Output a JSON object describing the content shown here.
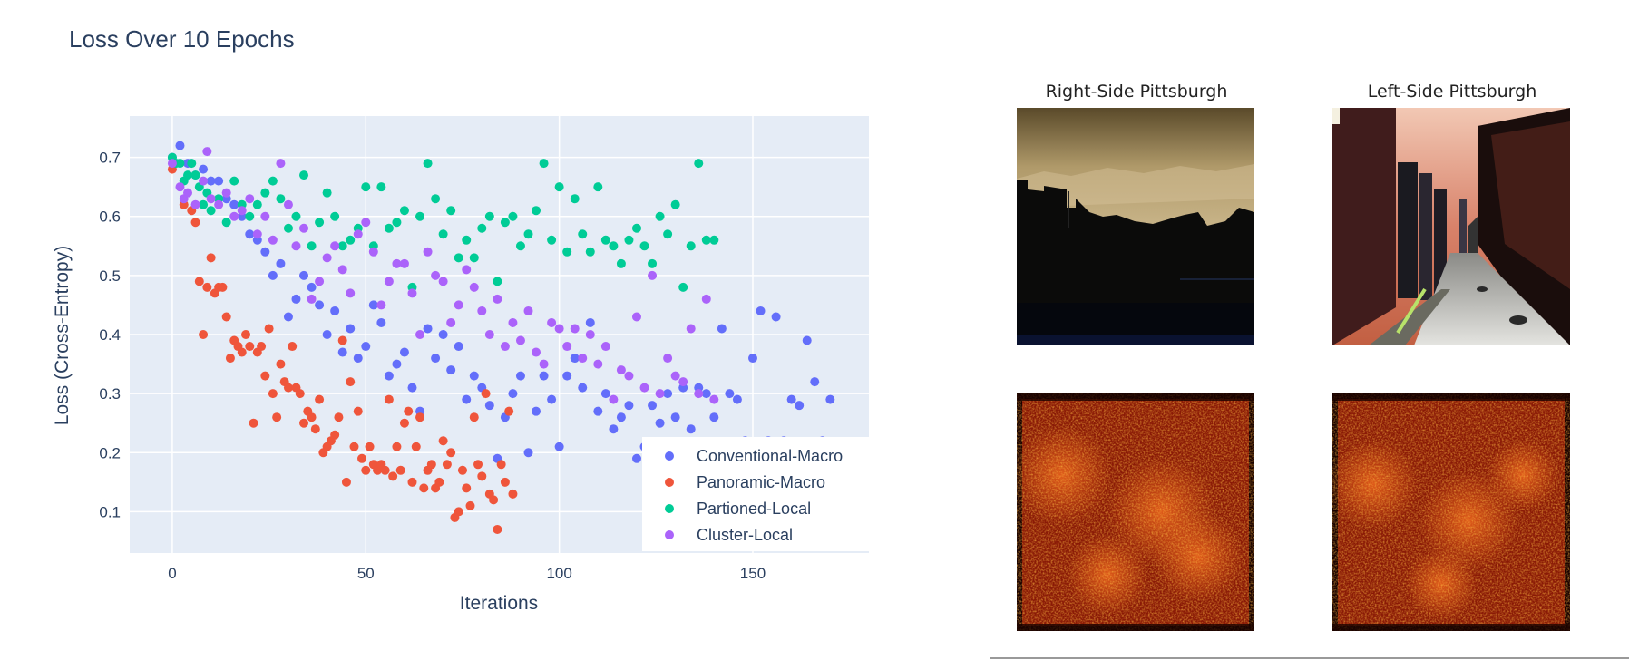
{
  "chart_data": {
    "type": "scatter",
    "title": "Loss Over 10 Epochs",
    "xlabel": "Iterations",
    "ylabel": "Loss (Cross-Entropy)",
    "xlim": [
      -11,
      180
    ],
    "ylim": [
      0.03,
      0.77
    ],
    "xticks": [
      0,
      50,
      100,
      150
    ],
    "yticks": [
      0.1,
      0.2,
      0.3,
      0.4,
      0.5,
      0.6,
      0.7
    ],
    "grid": true,
    "legend_position": "bottom-right",
    "series": [
      {
        "name": "Conventional-Macro",
        "color": "#636efa",
        "x": [
          0,
          2,
          4,
          6,
          8,
          10,
          12,
          14,
          16,
          18,
          20,
          22,
          24,
          26,
          28,
          30,
          32,
          34,
          36,
          38,
          40,
          42,
          44,
          46,
          48,
          50,
          52,
          54,
          56,
          58,
          60,
          62,
          64,
          66,
          68,
          70,
          72,
          74,
          76,
          78,
          80,
          82,
          84,
          86,
          88,
          90,
          92,
          94,
          96,
          98,
          100,
          102,
          104,
          106,
          108,
          110,
          112,
          114,
          116,
          118,
          120,
          122,
          124,
          126,
          128,
          130,
          132,
          134,
          136,
          138,
          140,
          142,
          144,
          146,
          148,
          150,
          152,
          154,
          156,
          158,
          160,
          162,
          164,
          166,
          168,
          170
        ],
        "y": [
          0.7,
          0.72,
          0.69,
          0.67,
          0.68,
          0.66,
          0.66,
          0.63,
          0.62,
          0.6,
          0.57,
          0.56,
          0.54,
          0.5,
          0.52,
          0.43,
          0.46,
          0.5,
          0.48,
          0.45,
          0.4,
          0.44,
          0.37,
          0.41,
          0.36,
          0.38,
          0.45,
          0.42,
          0.33,
          0.35,
          0.37,
          0.31,
          0.27,
          0.41,
          0.36,
          0.4,
          0.34,
          0.38,
          0.29,
          0.33,
          0.31,
          0.28,
          0.19,
          0.26,
          0.3,
          0.33,
          0.2,
          0.27,
          0.33,
          0.29,
          0.21,
          0.33,
          0.36,
          0.31,
          0.42,
          0.27,
          0.3,
          0.24,
          0.26,
          0.28,
          0.19,
          0.21,
          0.28,
          0.25,
          0.3,
          0.26,
          0.31,
          0.24,
          0.31,
          0.3,
          0.26,
          0.41,
          0.3,
          0.29,
          0.22,
          0.36,
          0.44,
          0.22,
          0.43,
          0.22,
          0.29,
          0.28,
          0.39,
          0.32,
          0.22,
          0.29
        ]
      },
      {
        "name": "Panoramic-Macro",
        "color": "#ef553b",
        "x": [
          0,
          3,
          5,
          6,
          7,
          8,
          9,
          10,
          11,
          12,
          13,
          14,
          15,
          16,
          17,
          18,
          19,
          20,
          21,
          22,
          23,
          24,
          25,
          26,
          27,
          28,
          29,
          30,
          31,
          32,
          33,
          34,
          35,
          36,
          37,
          38,
          39,
          40,
          41,
          42,
          43,
          44,
          45,
          46,
          47,
          48,
          49,
          50,
          51,
          52,
          53,
          54,
          55,
          56,
          57,
          58,
          59,
          60,
          61,
          62,
          63,
          64,
          65,
          66,
          67,
          68,
          69,
          70,
          71,
          72,
          73,
          74,
          75,
          76,
          77,
          78,
          79,
          80,
          81,
          82,
          83,
          84,
          85,
          86,
          87,
          88
        ],
        "y": [
          0.68,
          0.62,
          0.61,
          0.59,
          0.49,
          0.4,
          0.48,
          0.53,
          0.47,
          0.48,
          0.48,
          0.43,
          0.36,
          0.39,
          0.38,
          0.37,
          0.4,
          0.38,
          0.25,
          0.37,
          0.38,
          0.33,
          0.41,
          0.3,
          0.26,
          0.35,
          0.32,
          0.31,
          0.38,
          0.31,
          0.3,
          0.25,
          0.27,
          0.26,
          0.24,
          0.29,
          0.2,
          0.21,
          0.22,
          0.23,
          0.26,
          0.39,
          0.15,
          0.32,
          0.21,
          0.27,
          0.19,
          0.17,
          0.21,
          0.18,
          0.17,
          0.18,
          0.17,
          0.29,
          0.16,
          0.21,
          0.17,
          0.25,
          0.27,
          0.15,
          0.21,
          0.26,
          0.14,
          0.17,
          0.18,
          0.14,
          0.15,
          0.22,
          0.18,
          0.2,
          0.09,
          0.1,
          0.17,
          0.14,
          0.11,
          0.26,
          0.18,
          0.16,
          0.3,
          0.13,
          0.12,
          0.07,
          0.18,
          0.15,
          0.27,
          0.13
        ]
      },
      {
        "name": "Partioned-Local",
        "color": "#00cc96",
        "x": [
          0,
          1,
          2,
          3,
          4,
          5,
          6,
          7,
          8,
          9,
          10,
          12,
          14,
          16,
          18,
          20,
          22,
          24,
          26,
          28,
          30,
          32,
          34,
          36,
          38,
          40,
          42,
          44,
          46,
          48,
          50,
          52,
          54,
          56,
          58,
          60,
          62,
          64,
          66,
          68,
          70,
          72,
          74,
          76,
          78,
          80,
          82,
          84,
          86,
          88,
          90,
          92,
          94,
          96,
          98,
          100,
          102,
          104,
          106,
          108,
          110,
          112,
          114,
          116,
          118,
          120,
          122,
          124,
          126,
          128,
          130,
          132,
          134,
          136,
          138,
          140
        ],
        "y": [
          0.7,
          0.69,
          0.69,
          0.66,
          0.67,
          0.69,
          0.67,
          0.65,
          0.62,
          0.64,
          0.61,
          0.63,
          0.59,
          0.66,
          0.62,
          0.6,
          0.62,
          0.64,
          0.66,
          0.63,
          0.58,
          0.6,
          0.67,
          0.55,
          0.59,
          0.64,
          0.6,
          0.55,
          0.56,
          0.58,
          0.65,
          0.55,
          0.65,
          0.58,
          0.59,
          0.61,
          0.48,
          0.6,
          0.69,
          0.63,
          0.57,
          0.61,
          0.53,
          0.56,
          0.53,
          0.58,
          0.6,
          0.49,
          0.59,
          0.6,
          0.55,
          0.57,
          0.61,
          0.69,
          0.56,
          0.65,
          0.54,
          0.63,
          0.57,
          0.54,
          0.65,
          0.56,
          0.55,
          0.52,
          0.56,
          0.58,
          0.55,
          0.52,
          0.6,
          0.57,
          0.62,
          0.48,
          0.55,
          0.69,
          0.56,
          0.56
        ]
      },
      {
        "name": "Cluster-Local",
        "color": "#ab63fa",
        "x": [
          0,
          2,
          3,
          4,
          6,
          8,
          9,
          10,
          12,
          14,
          16,
          18,
          20,
          22,
          24,
          26,
          28,
          30,
          32,
          34,
          36,
          38,
          40,
          42,
          44,
          46,
          48,
          50,
          52,
          54,
          56,
          58,
          60,
          62,
          64,
          66,
          68,
          70,
          72,
          74,
          76,
          78,
          80,
          82,
          84,
          86,
          88,
          90,
          92,
          94,
          96,
          98,
          100,
          102,
          104,
          106,
          108,
          110,
          112,
          114,
          116,
          118,
          120,
          122,
          124,
          126,
          128,
          130,
          132,
          134,
          136,
          138,
          140
        ],
        "y": [
          0.69,
          0.65,
          0.63,
          0.64,
          0.62,
          0.66,
          0.71,
          0.63,
          0.62,
          0.64,
          0.6,
          0.61,
          0.63,
          0.57,
          0.6,
          0.56,
          0.69,
          0.62,
          0.55,
          0.58,
          0.46,
          0.49,
          0.53,
          0.55,
          0.51,
          0.47,
          0.57,
          0.59,
          0.54,
          0.45,
          0.49,
          0.52,
          0.52,
          0.47,
          0.4,
          0.54,
          0.5,
          0.49,
          0.42,
          0.45,
          0.51,
          0.48,
          0.44,
          0.4,
          0.46,
          0.38,
          0.42,
          0.39,
          0.44,
          0.37,
          0.35,
          0.42,
          0.41,
          0.38,
          0.41,
          0.36,
          0.4,
          0.35,
          0.38,
          0.29,
          0.34,
          0.33,
          0.43,
          0.31,
          0.5,
          0.3,
          0.36,
          0.33,
          0.32,
          0.41,
          0.3,
          0.46,
          0.29
        ]
      }
    ]
  },
  "images": {
    "right_title": "Right-Side Pittsburgh",
    "left_title": "Left-Side Pittsburgh",
    "panels": [
      {
        "name": "right-side-pittsburgh-photo",
        "description_icon": "street-photo"
      },
      {
        "name": "left-side-pittsburgh-photo",
        "description_icon": "street-photo"
      },
      {
        "name": "right-side-saliency-heatmap",
        "description_icon": "heatmap"
      },
      {
        "name": "left-side-saliency-heatmap",
        "description_icon": "heatmap"
      }
    ]
  }
}
